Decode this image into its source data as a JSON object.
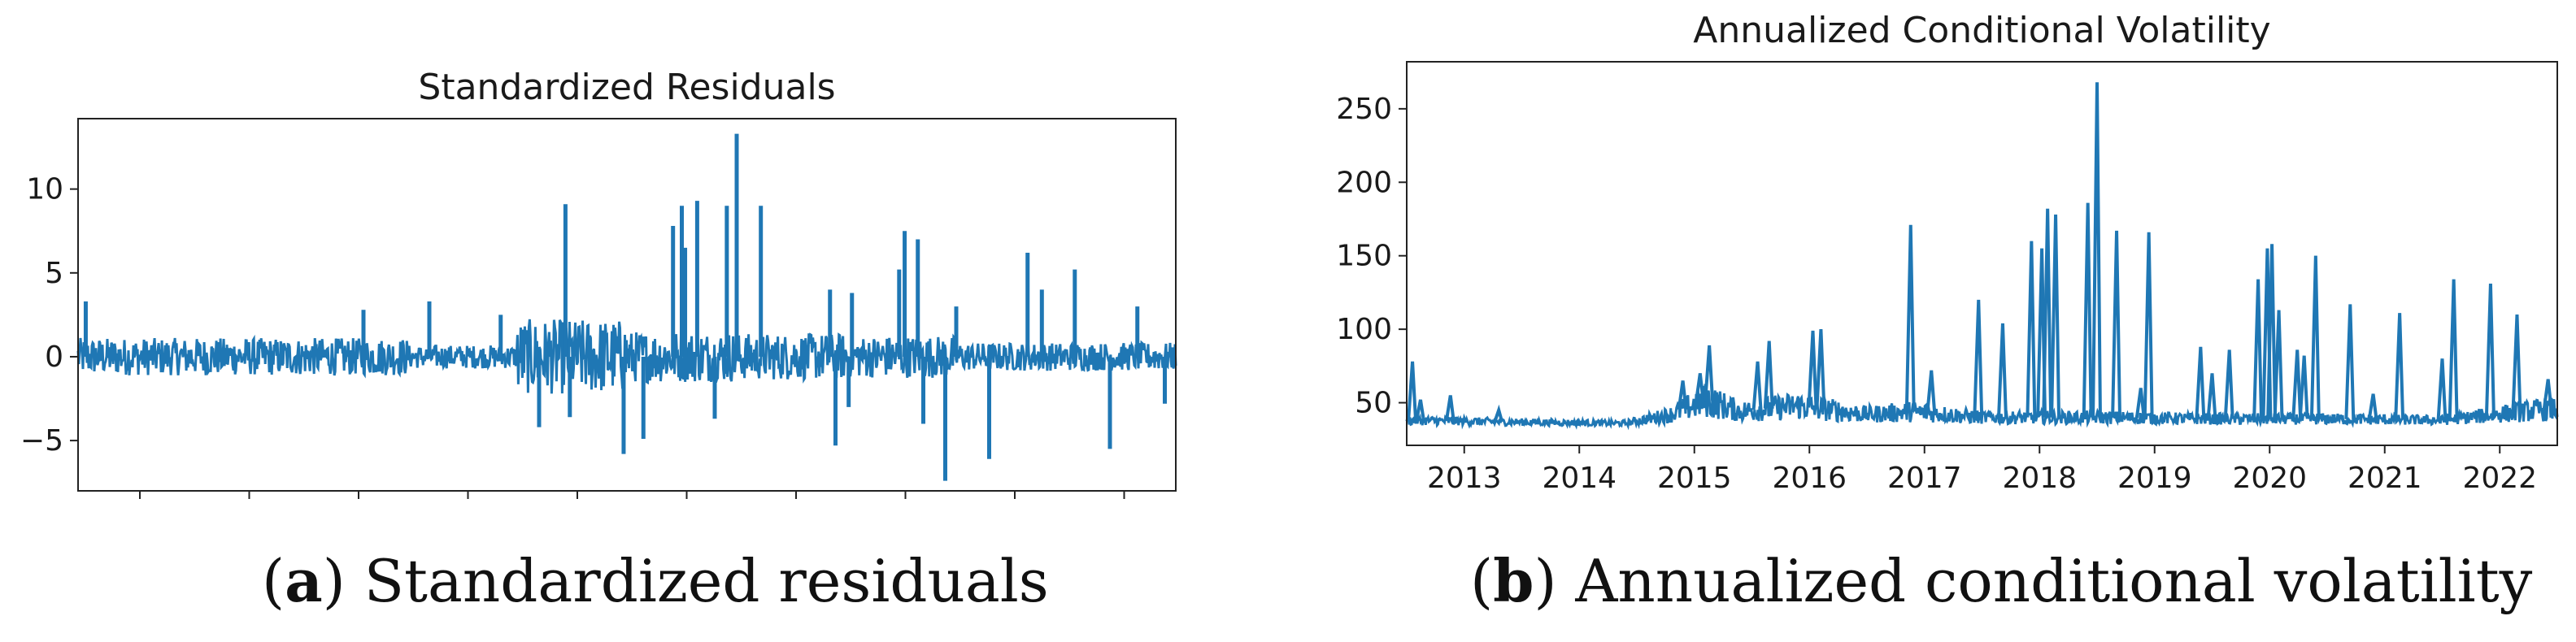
{
  "captions": [
    {
      "letter": "a",
      "text": "Standardized residuals"
    },
    {
      "letter": "b",
      "text": "Annualized conditional volatility"
    }
  ],
  "chart_data": [
    {
      "type": "line",
      "title": "Standardized Residuals",
      "xlabel": "",
      "ylabel": "",
      "ylim": [
        -8,
        14.2
      ],
      "yticks": [
        -5,
        0,
        5,
        10
      ],
      "color": "#1f77b4",
      "grid": false,
      "x_tick_labels": false,
      "x_tick_count": 10,
      "noise_baseline": [
        0.8,
        0.8,
        0.8,
        0.5,
        1.6,
        1.1,
        1.0,
        0.9,
        0.6,
        0.6
      ],
      "spikes": [
        {
          "x": 0.007,
          "y": 3.3
        },
        {
          "x": 0.26,
          "y": 2.8
        },
        {
          "x": 0.32,
          "y": 3.3
        },
        {
          "x": 0.385,
          "y": 2.5
        },
        {
          "x": 0.42,
          "y": -4.2
        },
        {
          "x": 0.444,
          "y": 9.1
        },
        {
          "x": 0.448,
          "y": -3.6
        },
        {
          "x": 0.497,
          "y": -5.8
        },
        {
          "x": 0.515,
          "y": -4.9
        },
        {
          "x": 0.542,
          "y": 7.8
        },
        {
          "x": 0.55,
          "y": 9.0
        },
        {
          "x": 0.553,
          "y": 6.5
        },
        {
          "x": 0.564,
          "y": 9.3
        },
        {
          "x": 0.58,
          "y": -3.7
        },
        {
          "x": 0.591,
          "y": 9.0
        },
        {
          "x": 0.6,
          "y": 13.3
        },
        {
          "x": 0.622,
          "y": 9.0
        },
        {
          "x": 0.685,
          "y": 4.0
        },
        {
          "x": 0.69,
          "y": -5.3
        },
        {
          "x": 0.705,
          "y": 3.8
        },
        {
          "x": 0.702,
          "y": -3.0
        },
        {
          "x": 0.748,
          "y": 5.2
        },
        {
          "x": 0.753,
          "y": 7.5
        },
        {
          "x": 0.765,
          "y": 7.0
        },
        {
          "x": 0.77,
          "y": -4.0
        },
        {
          "x": 0.79,
          "y": -7.4
        },
        {
          "x": 0.8,
          "y": 3.0
        },
        {
          "x": 0.83,
          "y": -6.1
        },
        {
          "x": 0.865,
          "y": 6.2
        },
        {
          "x": 0.878,
          "y": 4.0
        },
        {
          "x": 0.908,
          "y": 5.2
        },
        {
          "x": 0.94,
          "y": -5.5
        },
        {
          "x": 0.965,
          "y": 3.0
        },
        {
          "x": 0.99,
          "y": -2.8
        }
      ]
    },
    {
      "type": "line",
      "title": "Annualized Conditional Volatility",
      "xlabel": "",
      "ylabel": "",
      "xlim": [
        2012.5,
        2022.5
      ],
      "ylim": [
        21,
        282
      ],
      "yticks": [
        50,
        100,
        150,
        200,
        250
      ],
      "x_tick_labels": [
        "2013",
        "2014",
        "2015",
        "2016",
        "2017",
        "2018",
        "2019",
        "2020",
        "2021",
        "2022"
      ],
      "color": "#1f77b4",
      "grid": false,
      "floor": 33,
      "baseline": [
        {
          "x": 2012.5,
          "y": 38
        },
        {
          "x": 2013.3,
          "y": 37
        },
        {
          "x": 2014.4,
          "y": 36
        },
        {
          "x": 2014.8,
          "y": 42
        },
        {
          "x": 2015.1,
          "y": 52
        },
        {
          "x": 2015.4,
          "y": 44
        },
        {
          "x": 2015.9,
          "y": 48
        },
        {
          "x": 2016.5,
          "y": 42
        },
        {
          "x": 2016.9,
          "y": 44
        },
        {
          "x": 2017.5,
          "y": 40
        },
        {
          "x": 2018.5,
          "y": 40
        },
        {
          "x": 2019.5,
          "y": 39
        },
        {
          "x": 2020.5,
          "y": 39
        },
        {
          "x": 2021.5,
          "y": 38
        },
        {
          "x": 2022.2,
          "y": 44
        },
        {
          "x": 2022.5,
          "y": 46
        }
      ],
      "spikes": [
        {
          "x": 2012.55,
          "y": 78
        },
        {
          "x": 2012.62,
          "y": 52
        },
        {
          "x": 2012.88,
          "y": 55
        },
        {
          "x": 2013.3,
          "y": 45
        },
        {
          "x": 2014.9,
          "y": 65
        },
        {
          "x": 2015.05,
          "y": 70
        },
        {
          "x": 2015.13,
          "y": 89
        },
        {
          "x": 2015.55,
          "y": 78
        },
        {
          "x": 2015.65,
          "y": 92
        },
        {
          "x": 2016.03,
          "y": 99
        },
        {
          "x": 2016.1,
          "y": 100
        },
        {
          "x": 2016.88,
          "y": 171
        },
        {
          "x": 2017.06,
          "y": 72
        },
        {
          "x": 2017.47,
          "y": 120
        },
        {
          "x": 2017.68,
          "y": 104
        },
        {
          "x": 2017.93,
          "y": 160
        },
        {
          "x": 2018.02,
          "y": 155
        },
        {
          "x": 2018.07,
          "y": 182
        },
        {
          "x": 2018.14,
          "y": 178
        },
        {
          "x": 2018.42,
          "y": 186
        },
        {
          "x": 2018.5,
          "y": 268
        },
        {
          "x": 2018.67,
          "y": 167
        },
        {
          "x": 2018.88,
          "y": 60
        },
        {
          "x": 2018.95,
          "y": 166
        },
        {
          "x": 2019.4,
          "y": 88
        },
        {
          "x": 2019.5,
          "y": 70
        },
        {
          "x": 2019.65,
          "y": 86
        },
        {
          "x": 2019.9,
          "y": 134
        },
        {
          "x": 2019.98,
          "y": 155
        },
        {
          "x": 2020.02,
          "y": 158
        },
        {
          "x": 2020.08,
          "y": 113
        },
        {
          "x": 2020.24,
          "y": 86
        },
        {
          "x": 2020.3,
          "y": 82
        },
        {
          "x": 2020.4,
          "y": 150
        },
        {
          "x": 2020.7,
          "y": 117
        },
        {
          "x": 2020.9,
          "y": 56
        },
        {
          "x": 2021.13,
          "y": 111
        },
        {
          "x": 2021.5,
          "y": 80
        },
        {
          "x": 2021.6,
          "y": 134
        },
        {
          "x": 2021.92,
          "y": 131
        },
        {
          "x": 2022.15,
          "y": 110
        },
        {
          "x": 2022.42,
          "y": 66
        }
      ]
    }
  ]
}
